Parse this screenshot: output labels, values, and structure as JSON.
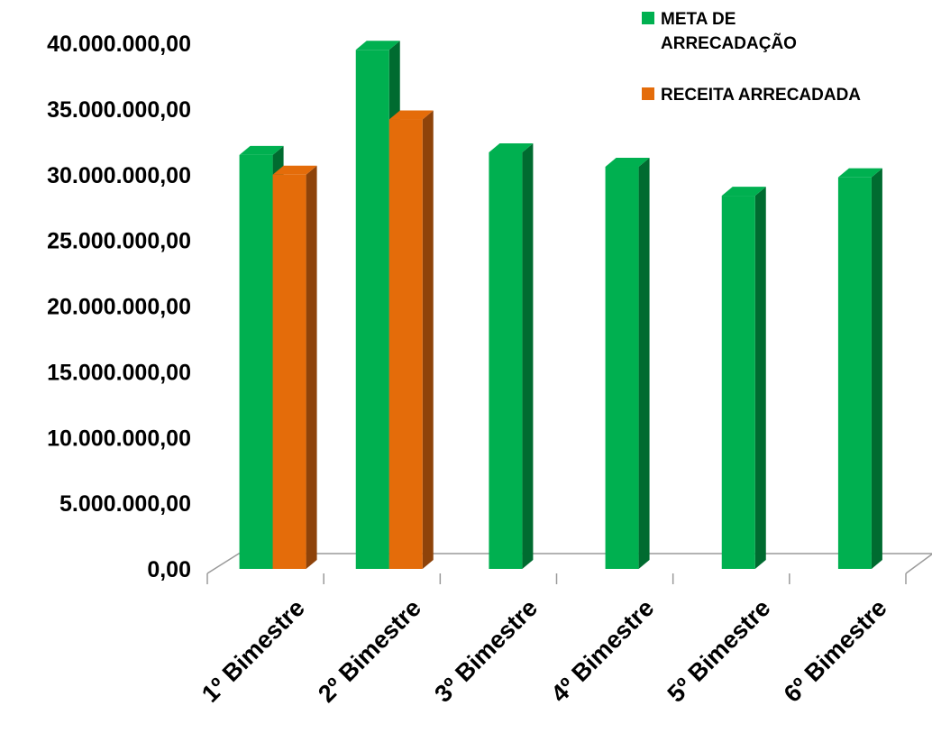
{
  "chart_data": {
    "type": "bar",
    "title": "",
    "xlabel": "",
    "ylabel": "",
    "categories": [
      "1º Bimestre",
      "2º Bimestre",
      "3º Bimestre",
      "4º Bimestre",
      "5º Bimestre",
      "6º Bimestre"
    ],
    "series": [
      {
        "name": "META DE ARRECADAÇÃO",
        "color": "#00B050",
        "side_color": "#006B30",
        "values": [
          31500000,
          39500000,
          31700000,
          30600000,
          28400000,
          29800000
        ]
      },
      {
        "name": "RECEITA ARRECADADA",
        "color": "#E46C0A",
        "side_color": "#8E430A",
        "values": [
          30000000,
          34200000,
          null,
          null,
          null,
          null
        ]
      }
    ],
    "ylim": [
      0,
      40000000
    ],
    "y_ticks": [
      "0,00",
      "5.000.000,00",
      "10.000.000,00",
      "15.000.000,00",
      "20.000.000,00",
      "25.000.000,00",
      "30.000.000,00",
      "35.000.000,00",
      "40.000.000,00"
    ],
    "y_tick_values": [
      0,
      5000000,
      10000000,
      15000000,
      20000000,
      25000000,
      30000000,
      35000000,
      40000000
    ],
    "grid": false,
    "style": "3d-columns",
    "legend_position": "top-right"
  }
}
